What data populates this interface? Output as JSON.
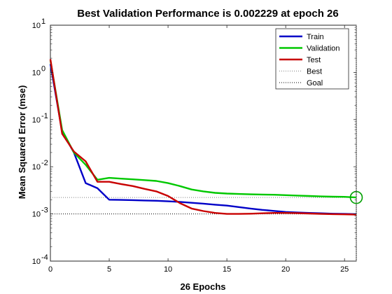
{
  "chart_data": {
    "type": "line",
    "title": "Best Validation Performance is 0.002229 at epoch 26",
    "xlabel": "26 Epochs",
    "ylabel": "Mean Squared Error  (mse)",
    "xlim": [
      0,
      26
    ],
    "ylim": [
      0.0001,
      10
    ],
    "yscale": "log",
    "grid": false,
    "legend_position": "top-right",
    "x_ticks": [
      0,
      5,
      10,
      15,
      20,
      25
    ],
    "y_tick_exponents": [
      -4,
      -3,
      -2,
      -1,
      0,
      1
    ],
    "y_tick_base": "10",
    "series": [
      {
        "name": "Train",
        "color": "#0000c8",
        "x": [
          0,
          1,
          2,
          3,
          4,
          5,
          6,
          7,
          8,
          9,
          10,
          11,
          12,
          13,
          14,
          15,
          16,
          17,
          18,
          19,
          20,
          21,
          22,
          23,
          24,
          25,
          26
        ],
        "y": [
          1.5,
          0.055,
          0.02,
          0.0045,
          0.0035,
          0.002,
          0.00198,
          0.00196,
          0.00193,
          0.0019,
          0.00185,
          0.0018,
          0.00172,
          0.00165,
          0.00157,
          0.0015,
          0.0014,
          0.0013,
          0.00122,
          0.00116,
          0.0011,
          0.00107,
          0.00105,
          0.00103,
          0.00101,
          0.001,
          0.00099
        ]
      },
      {
        "name": "Validation",
        "color": "#00c800",
        "x": [
          0,
          1,
          2,
          3,
          4,
          5,
          6,
          7,
          8,
          9,
          10,
          11,
          12,
          13,
          14,
          15,
          16,
          17,
          18,
          19,
          20,
          21,
          22,
          23,
          24,
          25,
          26
        ],
        "y": [
          1.8,
          0.06,
          0.02,
          0.011,
          0.0053,
          0.0058,
          0.0056,
          0.0054,
          0.0052,
          0.005,
          0.0045,
          0.0039,
          0.0033,
          0.003,
          0.0028,
          0.0027,
          0.00265,
          0.0026,
          0.00258,
          0.00255,
          0.0025,
          0.00245,
          0.0024,
          0.00235,
          0.00232,
          0.0023,
          0.002229
        ]
      },
      {
        "name": "Test",
        "color": "#c80000",
        "x": [
          0,
          1,
          2,
          3,
          4,
          5,
          6,
          7,
          8,
          9,
          10,
          11,
          12,
          13,
          14,
          15,
          16,
          17,
          18,
          19,
          20,
          21,
          22,
          23,
          24,
          25,
          26
        ],
        "y": [
          1.9,
          0.05,
          0.021,
          0.013,
          0.0048,
          0.0048,
          0.0043,
          0.0039,
          0.0034,
          0.003,
          0.0024,
          0.0017,
          0.0013,
          0.00115,
          0.00105,
          0.001,
          0.001,
          0.00101,
          0.00103,
          0.00105,
          0.00105,
          0.00104,
          0.00102,
          0.001,
          0.00099,
          0.00098,
          0.00097
        ]
      }
    ],
    "best_line": {
      "name": "Best",
      "y": 0.002229,
      "epoch": 26
    },
    "goal_line": {
      "name": "Goal",
      "y": 0.001
    }
  }
}
